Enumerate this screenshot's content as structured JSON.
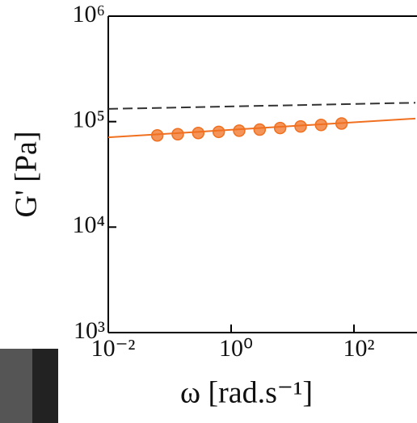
{
  "chart_data": {
    "type": "scatter",
    "ylabel": "G' [Pa]",
    "xlabel": "ω [rad.s⁻¹]",
    "xscale": "log",
    "yscale": "log",
    "xlim": [
      0.01,
      1000
    ],
    "ylim": [
      1000,
      1000000
    ],
    "xticks": [
      {
        "value": 0.01,
        "label": "10⁻²"
      },
      {
        "value": 1,
        "label": "10⁰"
      },
      {
        "value": 100,
        "label": "10²"
      }
    ],
    "yticks": [
      {
        "value": 1000,
        "label": "10³"
      },
      {
        "value": 10000,
        "label": "10⁴"
      },
      {
        "value": 100000,
        "label": "10⁵"
      },
      {
        "value": 1000000,
        "label": "10⁶"
      }
    ],
    "series": [
      {
        "kind": "line",
        "color": "#333333",
        "dash": true,
        "x": [
          0.01,
          1000
        ],
        "values": [
          132000,
          151000
        ]
      },
      {
        "kind": "line",
        "color": "#f07020",
        "dash": false,
        "x": [
          0.01,
          1000
        ],
        "values": [
          71000,
          107000
        ]
      },
      {
        "kind": "points",
        "color": "#f07020",
        "x": [
          0.0628,
          0.1353,
          0.2915,
          0.628,
          1.353,
          2.915,
          6.28,
          13.53,
          29.15,
          62.8
        ],
        "values": [
          74000,
          76000,
          78000,
          80000,
          82000,
          84000,
          87000,
          90000,
          93000,
          96000
        ]
      }
    ]
  }
}
